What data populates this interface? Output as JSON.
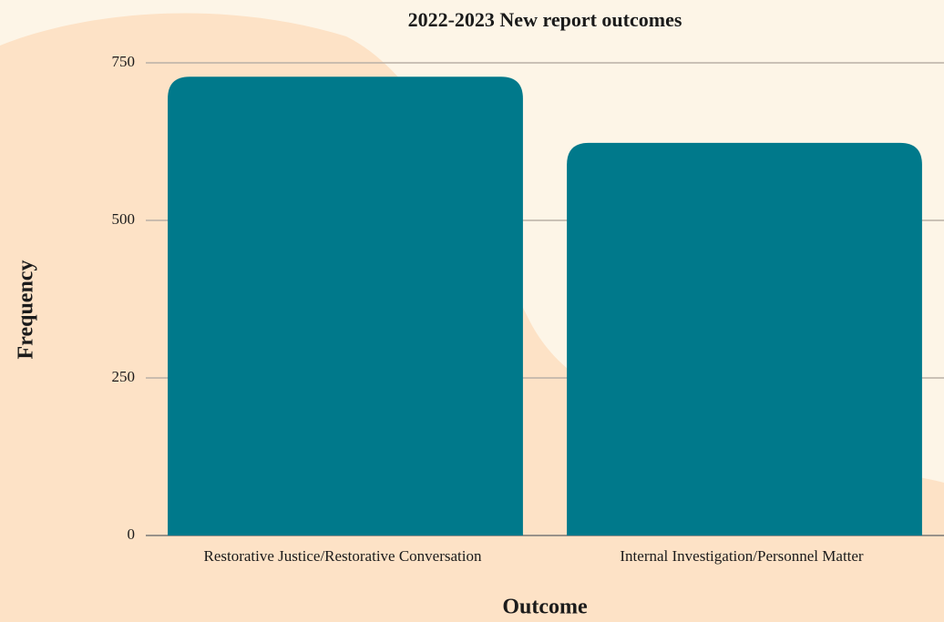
{
  "chart_data": {
    "type": "bar",
    "title": "2022-2023 New report outcomes",
    "x_label": "Outcome",
    "y_label": "Frequency",
    "categories": [
      "Restorative Justice/Restorative Conversation",
      "Internal Investigation/Personnel Matter"
    ],
    "values": [
      728,
      623
    ],
    "color": "#00798b",
    "ylim": [
      0,
      750
    ],
    "yticks": [
      0,
      250,
      500,
      750
    ],
    "grid": true
  }
}
